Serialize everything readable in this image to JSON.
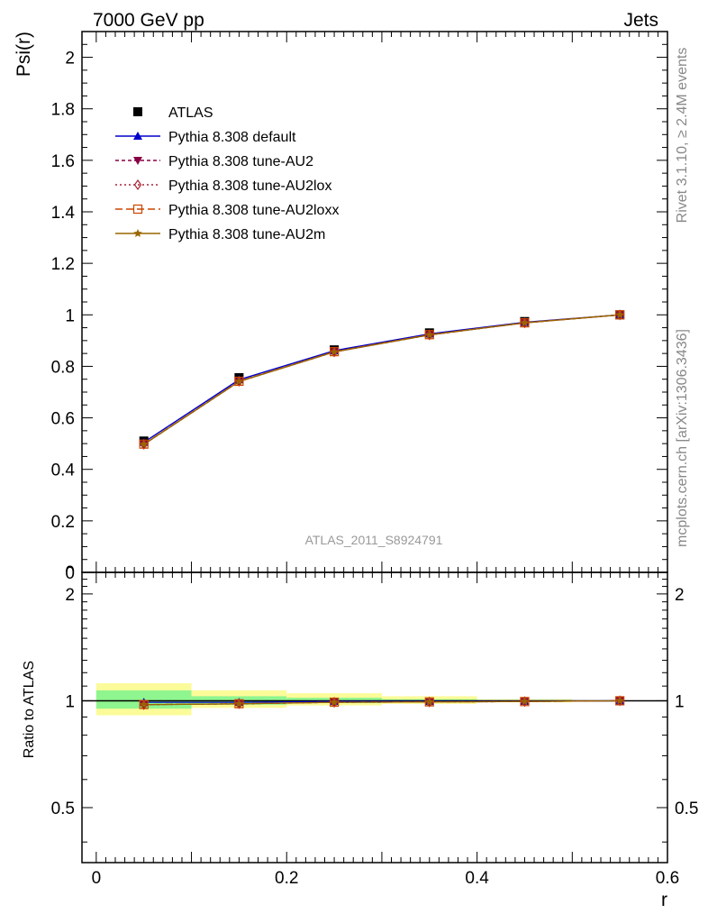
{
  "header": {
    "left": "7000 GeV pp",
    "right": "Jets"
  },
  "side_text": {
    "rivet": "Rivet 3.1.10, ≥ 2.4M events",
    "source": "mcplots.cern.ch [arXiv:1306.3436]"
  },
  "watermark": "ATLAS_2011_S8924791",
  "colors": {
    "atlas": "#000000",
    "default": "#0000cc",
    "au2": "#880044",
    "au2lox": "#aa2233",
    "au2loxx": "#cc4400",
    "au2m": "#996600",
    "band_inner": "#8ff58f",
    "band_outer": "#fbfb99"
  },
  "chart_data": [
    {
      "type": "line",
      "ylabel": "Psi(r)",
      "xlim": [
        -0.015,
        0.6
      ],
      "ylim": [
        0,
        2.1
      ],
      "y_ticks": [
        "0",
        "0.2",
        "0.4",
        "0.6",
        "0.8",
        "1",
        "1.2",
        "1.4",
        "1.6",
        "1.8",
        "2"
      ],
      "legend_position": "top-left",
      "x": [
        0.05,
        0.15,
        0.25,
        0.35,
        0.45,
        0.55
      ],
      "series": [
        {
          "name": "ATLAS",
          "marker": "filled-square",
          "values": [
            0.51,
            0.756,
            0.864,
            0.93,
            0.974,
            1.0
          ]
        },
        {
          "name": "Pythia 8.308 default",
          "marker": "filled-triangle",
          "values": [
            0.505,
            0.748,
            0.861,
            0.926,
            0.971,
            1.0
          ]
        },
        {
          "name": "Pythia 8.308 tune-AU2",
          "marker": "filled-triangle-down",
          "values": [
            0.497,
            0.741,
            0.856,
            0.922,
            0.969,
            1.0
          ]
        },
        {
          "name": "Pythia 8.308 tune-AU2lox",
          "marker": "open-diamond",
          "values": [
            0.497,
            0.742,
            0.856,
            0.922,
            0.969,
            1.0
          ]
        },
        {
          "name": "Pythia 8.308 tune-AU2loxx",
          "marker": "open-square",
          "values": [
            0.498,
            0.742,
            0.857,
            0.923,
            0.969,
            1.0
          ]
        },
        {
          "name": "Pythia 8.308 tune-AU2m",
          "marker": "star",
          "values": [
            0.497,
            0.741,
            0.856,
            0.922,
            0.969,
            1.0
          ]
        }
      ]
    },
    {
      "type": "line",
      "ylabel": "Ratio to ATLAS",
      "xlabel": "r",
      "xlim": [
        -0.015,
        0.6
      ],
      "ylim": [
        0.35,
        2.3
      ],
      "y_scale": "log",
      "y_ticks": [
        "0.5",
        "1",
        "2"
      ],
      "x_ticks": [
        "0",
        "0.2",
        "0.4",
        "0.6"
      ],
      "x": [
        0.05,
        0.15,
        0.25,
        0.35,
        0.45,
        0.55
      ],
      "bands": [
        {
          "x_lo": 0.0,
          "x_hi": 0.1,
          "inner": [
            0.95,
            1.07
          ],
          "outer": [
            0.91,
            1.12
          ]
        },
        {
          "x_lo": 0.1,
          "x_hi": 0.2,
          "inner": [
            0.975,
            1.03
          ],
          "outer": [
            0.955,
            1.07
          ]
        },
        {
          "x_lo": 0.2,
          "x_hi": 0.3,
          "inner": [
            0.985,
            1.02
          ],
          "outer": [
            0.97,
            1.05
          ]
        },
        {
          "x_lo": 0.3,
          "x_hi": 0.4,
          "inner": [
            0.99,
            1.01
          ],
          "outer": [
            0.98,
            1.03
          ]
        },
        {
          "x_lo": 0.4,
          "x_hi": 0.5,
          "inner": [
            0.995,
            1.005
          ],
          "outer": [
            0.99,
            1.01
          ]
        },
        {
          "x_lo": 0.5,
          "x_hi": 0.6,
          "inner": [
            1.0,
            1.0
          ],
          "outer": [
            1.0,
            1.0
          ]
        }
      ],
      "series": [
        {
          "name": "ATLAS",
          "values": [
            1.0,
            1.0,
            1.0,
            1.0,
            1.0,
            1.0
          ]
        },
        {
          "name": "Pythia 8.308 default",
          "values": [
            0.99,
            0.99,
            0.996,
            0.996,
            0.997,
            1.0
          ]
        },
        {
          "name": "Pythia 8.308 tune-AU2",
          "values": [
            0.975,
            0.98,
            0.99,
            0.992,
            0.995,
            1.0
          ]
        },
        {
          "name": "Pythia 8.308 tune-AU2lox",
          "values": [
            0.975,
            0.981,
            0.99,
            0.992,
            0.995,
            1.0
          ]
        },
        {
          "name": "Pythia 8.308 tune-AU2loxx",
          "values": [
            0.976,
            0.981,
            0.991,
            0.993,
            0.995,
            1.0
          ]
        },
        {
          "name": "Pythia 8.308 tune-AU2m",
          "values": [
            0.975,
            0.98,
            0.99,
            0.992,
            0.995,
            1.0
          ]
        }
      ]
    }
  ]
}
